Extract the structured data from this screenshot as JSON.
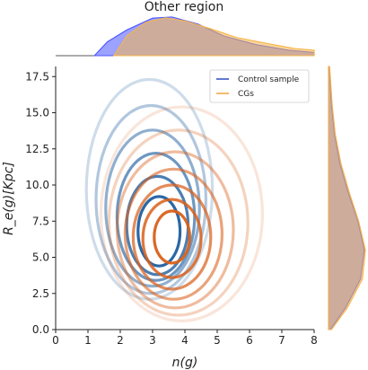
{
  "chart_data": {
    "type": "contour",
    "title": "Other region",
    "xlabel": "n(g)",
    "ylabel": "R_e(g)[Kpc]",
    "xlim": [
      0,
      8
    ],
    "ylim": [
      0,
      18.2
    ],
    "xticks": [
      "0",
      "1",
      "2",
      "3",
      "4",
      "5",
      "6",
      "7",
      "8"
    ],
    "yticks": [
      "0.0",
      "2.5",
      "5.0",
      "7.5",
      "10.0",
      "12.5",
      "15.0",
      "17.5"
    ],
    "legend_position": "top-right",
    "legend": [
      {
        "label": "Control sample",
        "color": "#1f3fbf"
      },
      {
        "label": "CGs",
        "color": "#f39c2e"
      }
    ],
    "series": [
      {
        "name": "Control sample",
        "color": "#1f5fa0",
        "levels": [
          {
            "center": [
              3.2,
              6.8
            ],
            "semi_axes": [
              0.65,
              2.4
            ],
            "alpha": 0.95
          },
          {
            "center": [
              3.15,
              7.2
            ],
            "semi_axes": [
              0.95,
              3.4
            ],
            "alpha": 0.8
          },
          {
            "center": [
              3.1,
              7.8
            ],
            "semi_axes": [
              1.2,
              4.4
            ],
            "alpha": 0.65
          },
          {
            "center": [
              3.0,
              8.4
            ],
            "semi_axes": [
              1.45,
              5.4
            ],
            "alpha": 0.5
          },
          {
            "center": [
              2.95,
              9.0
            ],
            "semi_axes": [
              1.7,
              6.5
            ],
            "alpha": 0.35
          },
          {
            "center": [
              2.9,
              9.7
            ],
            "semi_axes": [
              1.95,
              7.6
            ],
            "alpha": 0.22
          }
        ],
        "marginal_x": [
          [
            1.2,
            0.0
          ],
          [
            1.6,
            0.35
          ],
          [
            2.2,
            0.65
          ],
          [
            3.0,
            0.95
          ],
          [
            3.6,
            0.98
          ],
          [
            4.4,
            0.8
          ],
          [
            5.2,
            0.5
          ],
          [
            6.2,
            0.28
          ],
          [
            7.2,
            0.14
          ],
          [
            8.0,
            0.08
          ]
        ],
        "marginal_y": [
          [
            0.0,
            0.05
          ],
          [
            1.5,
            0.45
          ],
          [
            3.5,
            0.85
          ],
          [
            5.5,
            0.95
          ],
          [
            7.5,
            0.78
          ],
          [
            9.5,
            0.52
          ],
          [
            11.5,
            0.3
          ],
          [
            13.5,
            0.16
          ],
          [
            15.5,
            0.08
          ],
          [
            18.2,
            0.02
          ]
        ]
      },
      {
        "name": "CGs",
        "color": "#d9601a",
        "levels": [
          {
            "center": [
              3.6,
              6.4
            ],
            "semi_axes": [
              0.55,
              1.8
            ],
            "alpha": 0.95
          },
          {
            "center": [
              3.6,
              6.3
            ],
            "semi_axes": [
              0.9,
              2.7
            ],
            "alpha": 0.85
          },
          {
            "center": [
              3.6,
              6.4
            ],
            "semi_axes": [
              1.2,
              3.6
            ],
            "alpha": 0.72
          },
          {
            "center": [
              3.65,
              6.6
            ],
            "semi_axes": [
              1.5,
              4.5
            ],
            "alpha": 0.58
          },
          {
            "center": [
              3.7,
              6.9
            ],
            "semi_axes": [
              1.8,
              5.4
            ],
            "alpha": 0.42
          },
          {
            "center": [
              3.8,
              7.4
            ],
            "semi_axes": [
              2.15,
              6.4
            ],
            "alpha": 0.28
          },
          {
            "center": [
              3.9,
              8.0
            ],
            "semi_axes": [
              2.5,
              7.4
            ],
            "alpha": 0.16
          }
        ],
        "marginal_x": [
          [
            1.8,
            0.0
          ],
          [
            2.2,
            0.5
          ],
          [
            2.8,
            0.85
          ],
          [
            3.4,
            0.96
          ],
          [
            4.0,
            0.88
          ],
          [
            4.8,
            0.68
          ],
          [
            5.6,
            0.46
          ],
          [
            6.6,
            0.3
          ],
          [
            7.4,
            0.18
          ],
          [
            8.0,
            0.14
          ]
        ],
        "marginal_y": [
          [
            0.0,
            0.08
          ],
          [
            1.5,
            0.5
          ],
          [
            3.5,
            0.9
          ],
          [
            5.5,
            0.98
          ],
          [
            7.5,
            0.8
          ],
          [
            9.5,
            0.55
          ],
          [
            11.5,
            0.33
          ],
          [
            13.5,
            0.18
          ],
          [
            15.5,
            0.1
          ],
          [
            18.2,
            0.03
          ]
        ]
      }
    ],
    "marginal_overlap_color": "#a97a86"
  }
}
